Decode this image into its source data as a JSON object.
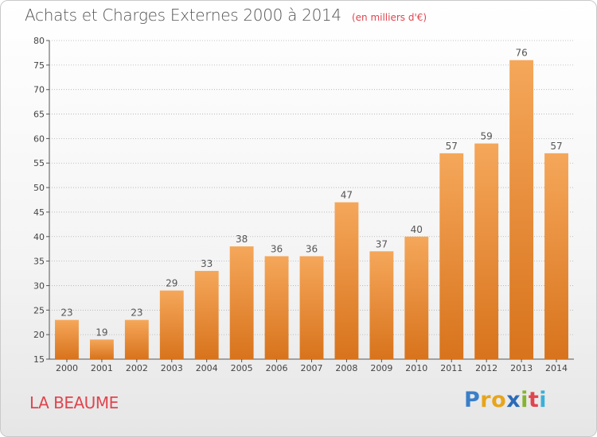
{
  "header": {
    "title": "Achats et Charges Externes 2000 à 2014",
    "unit": "(en milliers d'€)"
  },
  "footer": {
    "place": "LA BEAUME",
    "logo_letters": [
      "P",
      "r",
      "o",
      "x",
      "i",
      "t",
      "i"
    ]
  },
  "colors": {
    "bar_light": "#f5a75a",
    "bar_dark": "#d8731c",
    "title": "#555555",
    "accent": "#e0454f",
    "grid": "#b0b0b0"
  },
  "chart_data": {
    "type": "bar",
    "categories": [
      "2000",
      "2001",
      "2002",
      "2003",
      "2004",
      "2005",
      "2006",
      "2007",
      "2008",
      "2009",
      "2010",
      "2011",
      "2012",
      "2013",
      "2014"
    ],
    "values": [
      23,
      19,
      23,
      29,
      33,
      38,
      36,
      36,
      47,
      37,
      40,
      57,
      59,
      76,
      57
    ],
    "ylim": [
      15,
      80
    ],
    "yticks": [
      15,
      20,
      25,
      30,
      35,
      40,
      45,
      50,
      55,
      60,
      65,
      70,
      75,
      80
    ],
    "grid": true,
    "data_labels": true
  }
}
